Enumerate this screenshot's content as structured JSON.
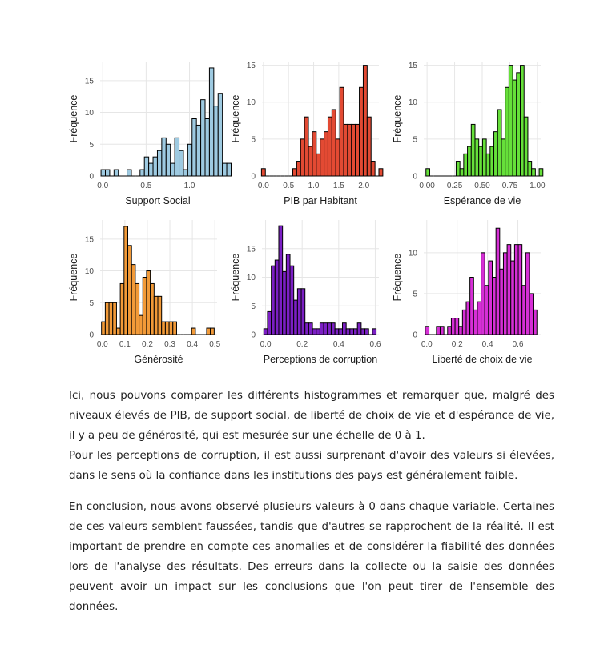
{
  "chart_data": [
    {
      "type": "bar",
      "title": "",
      "xlabel": "Support Social",
      "ylabel": "Fréquence",
      "xlim": [
        -0.03,
        1.3
      ],
      "ylim": [
        0,
        18
      ],
      "xticks": [
        "0.0",
        "0.5",
        "1.0"
      ],
      "xtick_values": [
        0,
        0.5,
        1.0
      ],
      "yticks": [
        "0",
        "5",
        "10",
        "15"
      ],
      "ytick_values": [
        0,
        5,
        10,
        15
      ],
      "bin_start": -0.02,
      "bin_width": 0.05,
      "values": [
        1,
        1,
        0,
        1,
        0,
        0,
        1,
        0,
        0,
        1,
        3,
        2,
        3,
        4,
        6,
        5,
        2,
        6,
        4,
        1,
        5,
        9,
        8,
        12,
        9,
        17,
        11,
        13,
        2,
        2
      ],
      "colors": {
        "fill": "#9ecae1",
        "stroke": "#000000"
      }
    },
    {
      "type": "bar",
      "title": "",
      "xlabel": "PIB par Habitant",
      "ylabel": "Fréquence",
      "xlim": [
        -0.03,
        2.3
      ],
      "ylim": [
        0,
        15.5
      ],
      "xticks": [
        "0.0",
        "0.5",
        "1.0",
        "1.5",
        "2.0"
      ],
      "xtick_values": [
        0,
        0.5,
        1.0,
        1.5,
        2.0
      ],
      "yticks": [
        "0",
        "5",
        "10",
        "15"
      ],
      "ytick_values": [
        0,
        5,
        10,
        15
      ],
      "bin_start": -0.04,
      "bin_width": 0.078,
      "values": [
        1,
        0,
        0,
        0,
        0,
        0,
        0,
        0,
        1,
        2,
        5,
        8,
        4,
        6,
        3,
        5,
        6,
        8,
        9,
        5,
        12,
        7,
        7,
        7,
        7,
        12,
        15,
        8,
        2,
        0,
        1
      ],
      "colors": {
        "fill": "#e34a33",
        "stroke": "#000000"
      }
    },
    {
      "type": "bar",
      "title": "",
      "xlabel": "Espérance de vie",
      "ylabel": "Fréquence",
      "xlim": [
        -0.03,
        1.03
      ],
      "ylim": [
        0,
        15.5
      ],
      "xticks": [
        "0.00",
        "0.25",
        "0.50",
        "0.75",
        "1.00"
      ],
      "xtick_values": [
        0,
        0.25,
        0.5,
        0.75,
        1.0
      ],
      "yticks": [
        "0",
        "5",
        "10",
        "15"
      ],
      "ytick_values": [
        0,
        5,
        10,
        15
      ],
      "bin_start": -0.01,
      "bin_width": 0.0342,
      "values": [
        1,
        0,
        0,
        0,
        0,
        0,
        0,
        0,
        2,
        1,
        3,
        4,
        7,
        5,
        4,
        5,
        3,
        4,
        6,
        9,
        5,
        12,
        15,
        13,
        14,
        15,
        8,
        2,
        1,
        0,
        1
      ],
      "colors": {
        "fill": "#66e03a",
        "stroke": "#000000"
      }
    },
    {
      "type": "bar",
      "title": "",
      "xlabel": "Générosité",
      "ylabel": "Fréquence",
      "xlim": [
        -0.01,
        0.51
      ],
      "ylim": [
        0,
        18
      ],
      "xticks": [
        "0.0",
        "0.1",
        "0.2",
        "0.3",
        "0.4",
        "0.5"
      ],
      "xtick_values": [
        0,
        0.1,
        0.2,
        0.3,
        0.4,
        0.5
      ],
      "yticks": [
        "0",
        "5",
        "10",
        "15"
      ],
      "ytick_values": [
        0,
        5,
        10,
        15
      ],
      "bin_start": -0.004,
      "bin_width": 0.0167,
      "values": [
        2,
        5,
        5,
        5,
        1,
        8,
        17,
        14,
        11,
        8,
        3,
        9,
        10,
        8,
        6,
        6,
        2,
        2,
        2,
        2,
        0,
        0,
        0,
        0,
        1,
        0,
        0,
        0,
        1,
        1
      ],
      "colors": {
        "fill": "#f29a38",
        "stroke": "#000000"
      }
    },
    {
      "type": "bar",
      "title": "",
      "xlabel": "Perceptions de corruption",
      "ylabel": "Fréquence",
      "xlim": [
        -0.02,
        0.62
      ],
      "ylim": [
        0,
        20
      ],
      "xticks": [
        "0.0",
        "0.2",
        "0.4",
        "0.6"
      ],
      "xtick_values": [
        0,
        0.2,
        0.4,
        0.6
      ],
      "yticks": [
        "0",
        "5",
        "10",
        "15"
      ],
      "ytick_values": [
        0,
        5,
        10,
        15
      ],
      "bin_start": -0.01,
      "bin_width": 0.0205,
      "values": [
        1,
        4,
        12,
        13,
        19,
        11,
        14,
        12,
        6,
        8,
        8,
        2,
        2,
        1,
        1,
        2,
        2,
        2,
        2,
        1,
        1,
        2,
        1,
        1,
        1,
        2,
        1,
        1,
        0,
        1
      ],
      "colors": {
        "fill": "#7b1fc4",
        "stroke": "#000000"
      }
    },
    {
      "type": "bar",
      "title": "",
      "xlabel": "Liberté de choix de vie",
      "ylabel": "Fréquence",
      "xlim": [
        -0.02,
        0.75
      ],
      "ylim": [
        0,
        14
      ],
      "xticks": [
        "0.0",
        "0.2",
        "0.4",
        "0.6"
      ],
      "xtick_values": [
        0,
        0.2,
        0.4,
        0.6
      ],
      "yticks": [
        "0",
        "5",
        "10"
      ],
      "ytick_values": [
        0,
        5,
        10
      ],
      "bin_start": -0.01,
      "bin_width": 0.0245,
      "values": [
        1,
        0,
        0,
        1,
        1,
        0,
        1,
        2,
        2,
        1,
        3,
        4,
        7,
        3,
        4,
        10,
        6,
        9,
        7,
        13,
        8,
        10,
        11,
        9,
        11,
        11,
        6,
        10,
        5,
        3
      ],
      "colors": {
        "fill": "#d62fd6",
        "stroke": "#000000"
      }
    }
  ],
  "text": {
    "p1": "Ici, nous pouvons comparer les différents histogrammes et remarquer que, malgré des niveaux élevés de PIB, de support social, de liberté de choix de vie et d'espérance de vie, il y a peu de générosité, qui est mesurée sur une échelle de 0 à 1.",
    "p2": "Pour les perceptions de corruption, il est aussi surprenant d'avoir des valeurs si élevées, dans le sens où la confiance dans les institutions des pays est généralement faible.",
    "p3": "En conclusion, nous avons observé plusieurs valeurs à 0 dans chaque variable. Certaines de ces valeurs semblent faussées, tandis que d'autres se rapprochent de la réalité. Il est important de prendre en compte ces anomalies et de considérer la fiabilité des données lors de l'analyse des résultats. Des erreurs dans la collecte ou la saisie des données peuvent avoir un impact sur les conclusions que l'on peut tirer de l'ensemble des données."
  }
}
